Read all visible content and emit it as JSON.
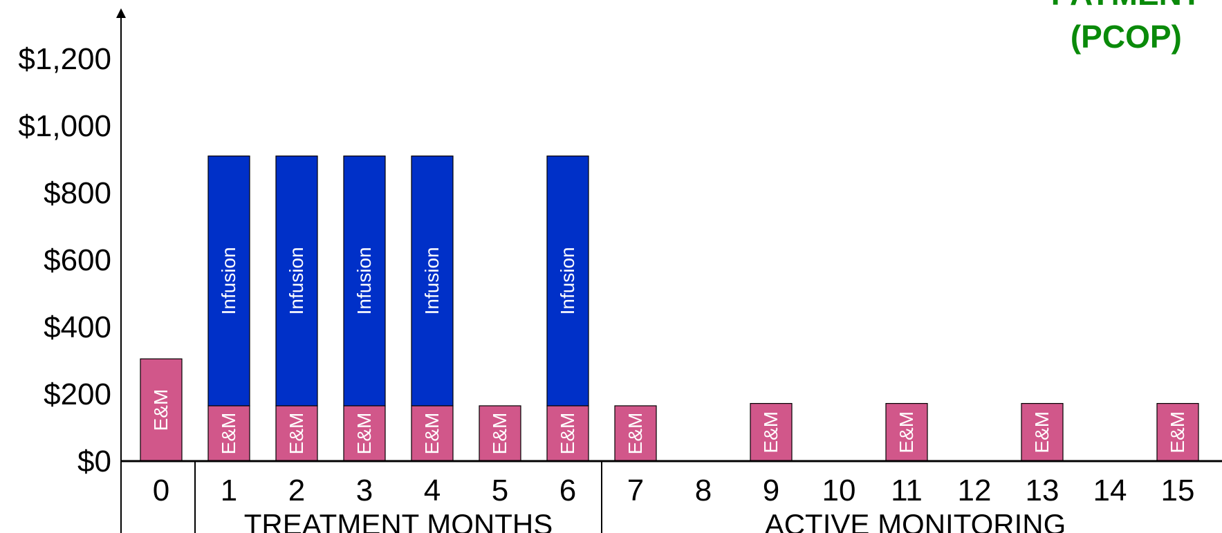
{
  "title_lines": [
    "PAYMENT",
    "(PCOP)"
  ],
  "colors": {
    "em": "#d1578a",
    "infusion": "#0030c8",
    "axis": "#000000",
    "title": "#0a8a0a",
    "bar_label": "#ffffff"
  },
  "chart_data": {
    "type": "bar",
    "stacked": true,
    "categories": [
      "0",
      "1",
      "2",
      "3",
      "4",
      "5",
      "6",
      "7",
      "8",
      "9",
      "10",
      "11",
      "12",
      "13",
      "14",
      "15"
    ],
    "series": [
      {
        "name": "E&M",
        "color": "#d1578a",
        "label": "E&M",
        "values": [
          305,
          165,
          165,
          165,
          165,
          165,
          165,
          165,
          0,
          172,
          0,
          172,
          0,
          172,
          0,
          172
        ]
      },
      {
        "name": "Infusion",
        "color": "#0030c8",
        "label": "Infusion",
        "values": [
          0,
          745,
          745,
          745,
          745,
          0,
          745,
          0,
          0,
          0,
          0,
          0,
          0,
          0,
          0,
          0
        ]
      }
    ],
    "yticks": [
      "$0",
      "$200",
      "$400",
      "$600",
      "$800",
      "$1,000",
      "$1,200"
    ],
    "ylim": [
      0,
      1200
    ],
    "groups": [
      {
        "label": "TREATMENT MONTHS",
        "from": 1,
        "to": 6
      },
      {
        "label": "ACTIVE MONITORING",
        "from": 7,
        "to": 15
      }
    ],
    "xlabel": "",
    "ylabel": "",
    "grid": false,
    "legend": "none"
  }
}
